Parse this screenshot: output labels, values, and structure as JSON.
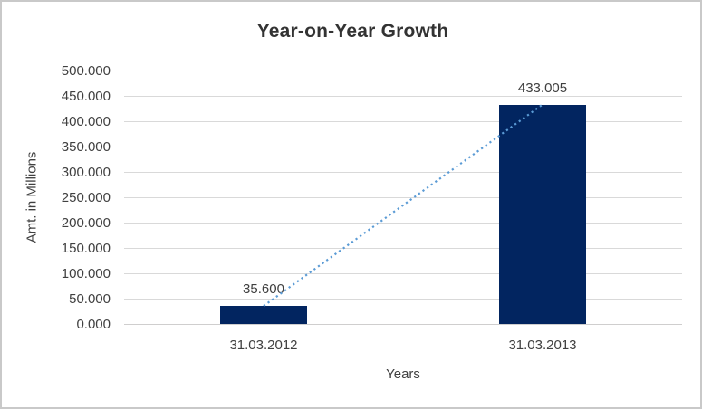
{
  "chart_data": {
    "type": "bar",
    "title": "Year-on-Year Growth",
    "xlabel": "Years",
    "ylabel": "Amt. in Millions",
    "categories": [
      "31.03.2012",
      "31.03.2013"
    ],
    "values": [
      35.6,
      433.005
    ],
    "value_labels": [
      "35.600",
      "433.005"
    ],
    "ylim": [
      0,
      500
    ],
    "ytick_step": 50,
    "ytick_labels": [
      "0.000",
      "50.000",
      "100.000",
      "150.000",
      "200.000",
      "250.000",
      "300.000",
      "350.000",
      "400.000",
      "450.000",
      "500.000"
    ],
    "grid": true,
    "legend": "none",
    "trendline": {
      "style": "dotted",
      "from_point": 0,
      "to_point": 1
    },
    "colors": {
      "bar": "#022560",
      "trendline": "#5b9bd5",
      "gridline": "#d9d9d9",
      "axis_line": "#cfcece",
      "text": "#404040",
      "title": "#333333",
      "frame_border": "#c9c9c9",
      "background": "#ffffff"
    }
  }
}
